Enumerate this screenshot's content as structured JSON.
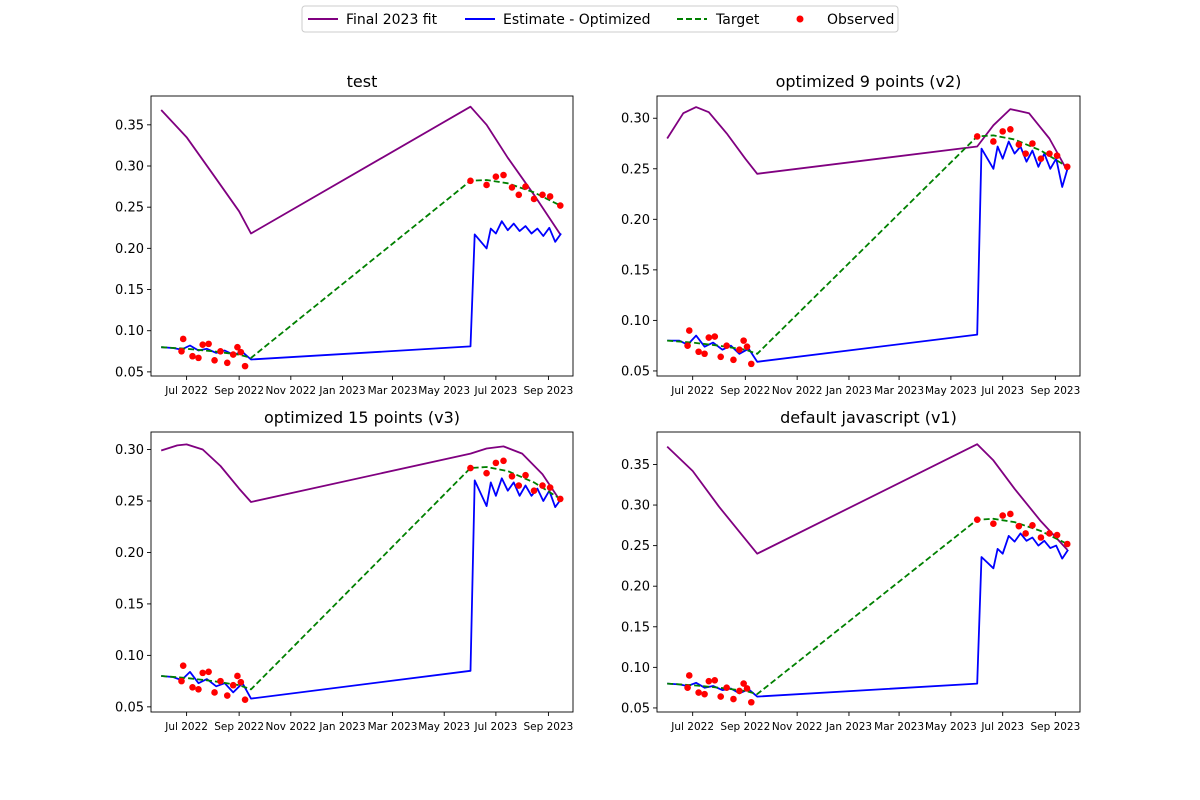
{
  "legend": [
    {
      "label": "Final 2023 fit",
      "color": "#800080",
      "style": "solid"
    },
    {
      "label": "Estimate - Optimized",
      "color": "#0000ff",
      "style": "solid"
    },
    {
      "label": "Target",
      "color": "#008000",
      "style": "dashed"
    },
    {
      "label": "Observed",
      "color": "#ff0000",
      "style": "marker"
    }
  ],
  "chart_data": [
    {
      "type": "line",
      "title": "test",
      "xlabel": "",
      "ylabel": "",
      "xlim": [
        "2022-05-20",
        "2023-09-30"
      ],
      "ylim": [
        0.045,
        0.385
      ],
      "yticks": [
        0.05,
        0.1,
        0.15,
        0.2,
        0.25,
        0.3,
        0.35
      ],
      "grid": false,
      "series": [
        {
          "name": "Final 2023 fit",
          "x": [
            "2022-06-01",
            "2022-07-01",
            "2022-08-01",
            "2022-09-01",
            "2022-09-15",
            "2023-06-01",
            "2023-06-20",
            "2023-07-15",
            "2023-08-15",
            "2023-09-15"
          ],
          "y": [
            0.368,
            0.335,
            0.29,
            0.245,
            0.218,
            0.372,
            0.35,
            0.31,
            0.265,
            0.217
          ]
        },
        {
          "name": "Estimate - Optimized",
          "x": [
            "2022-06-01",
            "2022-06-15",
            "2022-06-25",
            "2022-07-05",
            "2022-07-15",
            "2022-07-25",
            "2022-08-05",
            "2022-08-15",
            "2022-08-25",
            "2022-09-05",
            "2022-09-15",
            "2023-06-01",
            "2023-06-06",
            "2023-06-20",
            "2023-06-25",
            "2023-07-01",
            "2023-07-08",
            "2023-07-15",
            "2023-07-22",
            "2023-07-29",
            "2023-08-05",
            "2023-08-12",
            "2023-08-19",
            "2023-08-26",
            "2023-09-02",
            "2023-09-09",
            "2023-09-16"
          ],
          "y": [
            0.08,
            0.079,
            0.077,
            0.082,
            0.076,
            0.078,
            0.073,
            0.076,
            0.071,
            0.074,
            0.065,
            0.081,
            0.217,
            0.2,
            0.224,
            0.218,
            0.233,
            0.222,
            0.23,
            0.221,
            0.227,
            0.218,
            0.224,
            0.215,
            0.225,
            0.208,
            0.218
          ]
        },
        {
          "name": "Target",
          "x": [
            "2022-06-01",
            "2022-07-01",
            "2022-08-01",
            "2022-09-01",
            "2022-09-15",
            "2023-06-01",
            "2023-06-20",
            "2023-07-15",
            "2023-08-15",
            "2023-09-15"
          ],
          "y": [
            0.08,
            0.078,
            0.075,
            0.071,
            0.067,
            0.282,
            0.283,
            0.279,
            0.268,
            0.252
          ]
        },
        {
          "name": "Observed",
          "type": "scatter",
          "x": [
            "2022-06-25",
            "2022-06-27",
            "2022-07-08",
            "2022-07-15",
            "2022-07-20",
            "2022-07-27",
            "2022-08-03",
            "2022-08-10",
            "2022-08-18",
            "2022-08-25",
            "2022-08-30",
            "2022-09-03",
            "2022-09-08",
            "2023-06-01",
            "2023-06-20",
            "2023-07-01",
            "2023-07-10",
            "2023-07-20",
            "2023-07-28",
            "2023-08-05",
            "2023-08-15",
            "2023-08-25",
            "2023-09-03",
            "2023-09-15"
          ],
          "y": [
            0.075,
            0.09,
            0.069,
            0.067,
            0.083,
            0.084,
            0.064,
            0.075,
            0.061,
            0.071,
            0.08,
            0.074,
            0.057,
            0.282,
            0.277,
            0.287,
            0.289,
            0.274,
            0.265,
            0.275,
            0.26,
            0.265,
            0.263,
            0.252
          ]
        }
      ]
    },
    {
      "type": "line",
      "title": "optimized 9 points (v2)",
      "xlabel": "",
      "ylabel": "",
      "xlim": [
        "2022-05-20",
        "2023-09-30"
      ],
      "ylim": [
        0.045,
        0.322
      ],
      "yticks": [
        0.05,
        0.1,
        0.15,
        0.2,
        0.25,
        0.3
      ],
      "grid": false,
      "series": [
        {
          "name": "Final 2023 fit",
          "x": [
            "2022-06-01",
            "2022-06-20",
            "2022-07-05",
            "2022-07-20",
            "2022-08-10",
            "2022-09-01",
            "2022-09-15",
            "2023-06-01",
            "2023-06-20",
            "2023-07-10",
            "2023-08-01",
            "2023-08-25",
            "2023-09-15"
          ],
          "y": [
            0.28,
            0.305,
            0.311,
            0.306,
            0.285,
            0.26,
            0.245,
            0.272,
            0.293,
            0.309,
            0.305,
            0.28,
            0.248
          ]
        },
        {
          "name": "Estimate - Optimized",
          "x": [
            "2022-06-01",
            "2022-06-15",
            "2022-06-25",
            "2022-07-05",
            "2022-07-15",
            "2022-07-25",
            "2022-08-05",
            "2022-08-15",
            "2022-08-25",
            "2022-09-05",
            "2022-09-15",
            "2023-06-01",
            "2023-06-06",
            "2023-06-20",
            "2023-06-25",
            "2023-07-01",
            "2023-07-08",
            "2023-07-15",
            "2023-07-22",
            "2023-07-29",
            "2023-08-05",
            "2023-08-12",
            "2023-08-19",
            "2023-08-26",
            "2023-09-02",
            "2023-09-09",
            "2023-09-16"
          ],
          "y": [
            0.08,
            0.08,
            0.076,
            0.085,
            0.074,
            0.078,
            0.071,
            0.075,
            0.067,
            0.072,
            0.059,
            0.086,
            0.27,
            0.25,
            0.272,
            0.26,
            0.277,
            0.265,
            0.272,
            0.257,
            0.268,
            0.252,
            0.265,
            0.25,
            0.26,
            0.232,
            0.252
          ]
        },
        {
          "name": "Target",
          "x": [
            "2022-06-01",
            "2022-07-01",
            "2022-08-01",
            "2022-09-01",
            "2022-09-15",
            "2023-06-01",
            "2023-06-20",
            "2023-07-15",
            "2023-08-15",
            "2023-09-15"
          ],
          "y": [
            0.08,
            0.078,
            0.075,
            0.071,
            0.067,
            0.282,
            0.283,
            0.279,
            0.268,
            0.252
          ]
        },
        {
          "name": "Observed",
          "type": "scatter",
          "x": [
            "2022-06-25",
            "2022-06-27",
            "2022-07-08",
            "2022-07-15",
            "2022-07-20",
            "2022-07-27",
            "2022-08-03",
            "2022-08-10",
            "2022-08-18",
            "2022-08-25",
            "2022-08-30",
            "2022-09-03",
            "2022-09-08",
            "2023-06-01",
            "2023-06-20",
            "2023-07-01",
            "2023-07-10",
            "2023-07-20",
            "2023-07-28",
            "2023-08-05",
            "2023-08-15",
            "2023-08-25",
            "2023-09-03",
            "2023-09-15"
          ],
          "y": [
            0.075,
            0.09,
            0.069,
            0.067,
            0.083,
            0.084,
            0.064,
            0.075,
            0.061,
            0.071,
            0.08,
            0.074,
            0.057,
            0.282,
            0.277,
            0.287,
            0.289,
            0.274,
            0.265,
            0.275,
            0.26,
            0.265,
            0.263,
            0.252
          ]
        }
      ]
    },
    {
      "type": "line",
      "title": "optimized 15 points (v3)",
      "xlabel": "",
      "ylabel": "",
      "xlim": [
        "2022-05-20",
        "2023-09-30"
      ],
      "ylim": [
        0.045,
        0.317
      ],
      "yticks": [
        0.05,
        0.1,
        0.15,
        0.2,
        0.25,
        0.3
      ],
      "grid": false,
      "series": [
        {
          "name": "Final 2023 fit",
          "x": [
            "2022-06-01",
            "2022-06-20",
            "2022-07-01",
            "2022-07-20",
            "2022-08-10",
            "2022-09-01",
            "2022-09-15",
            "2023-06-01",
            "2023-06-20",
            "2023-07-10",
            "2023-08-01",
            "2023-08-25",
            "2023-09-15"
          ],
          "y": [
            0.299,
            0.304,
            0.305,
            0.3,
            0.284,
            0.262,
            0.249,
            0.296,
            0.301,
            0.303,
            0.296,
            0.276,
            0.25
          ]
        },
        {
          "name": "Estimate - Optimized",
          "x": [
            "2022-06-01",
            "2022-06-15",
            "2022-06-25",
            "2022-07-05",
            "2022-07-15",
            "2022-07-25",
            "2022-08-05",
            "2022-08-15",
            "2022-08-25",
            "2022-09-05",
            "2022-09-15",
            "2023-06-01",
            "2023-06-06",
            "2023-06-20",
            "2023-06-25",
            "2023-07-01",
            "2023-07-08",
            "2023-07-15",
            "2023-07-22",
            "2023-07-29",
            "2023-08-05",
            "2023-08-12",
            "2023-08-19",
            "2023-08-26",
            "2023-09-02",
            "2023-09-09",
            "2023-09-16"
          ],
          "y": [
            0.08,
            0.079,
            0.076,
            0.084,
            0.073,
            0.077,
            0.07,
            0.073,
            0.064,
            0.073,
            0.058,
            0.085,
            0.27,
            0.245,
            0.268,
            0.255,
            0.272,
            0.26,
            0.268,
            0.255,
            0.265,
            0.255,
            0.262,
            0.25,
            0.26,
            0.244,
            0.252
          ]
        },
        {
          "name": "Target",
          "x": [
            "2022-06-01",
            "2022-07-01",
            "2022-08-01",
            "2022-09-01",
            "2022-09-15",
            "2023-06-01",
            "2023-06-20",
            "2023-07-15",
            "2023-08-15",
            "2023-09-15"
          ],
          "y": [
            0.08,
            0.078,
            0.075,
            0.071,
            0.067,
            0.282,
            0.283,
            0.279,
            0.268,
            0.252
          ]
        },
        {
          "name": "Observed",
          "type": "scatter",
          "x": [
            "2022-06-25",
            "2022-06-27",
            "2022-07-08",
            "2022-07-15",
            "2022-07-20",
            "2022-07-27",
            "2022-08-03",
            "2022-08-10",
            "2022-08-18",
            "2022-08-25",
            "2022-08-30",
            "2022-09-03",
            "2022-09-08",
            "2023-06-01",
            "2023-06-20",
            "2023-07-01",
            "2023-07-10",
            "2023-07-20",
            "2023-07-28",
            "2023-08-05",
            "2023-08-15",
            "2023-08-25",
            "2023-09-03",
            "2023-09-15"
          ],
          "y": [
            0.075,
            0.09,
            0.069,
            0.067,
            0.083,
            0.084,
            0.064,
            0.075,
            0.061,
            0.071,
            0.08,
            0.074,
            0.057,
            0.282,
            0.277,
            0.287,
            0.289,
            0.274,
            0.265,
            0.275,
            0.26,
            0.265,
            0.263,
            0.252
          ]
        }
      ]
    },
    {
      "type": "line",
      "title": "default javascript (v1)",
      "xlabel": "",
      "ylabel": "",
      "xlim": [
        "2022-05-20",
        "2023-09-30"
      ],
      "ylim": [
        0.045,
        0.39
      ],
      "yticks": [
        0.05,
        0.1,
        0.15,
        0.2,
        0.25,
        0.3,
        0.35
      ],
      "grid": false,
      "series": [
        {
          "name": "Final 2023 fit",
          "x": [
            "2022-06-01",
            "2022-07-01",
            "2022-08-01",
            "2022-09-01",
            "2022-09-15",
            "2023-06-01",
            "2023-06-20",
            "2023-07-15",
            "2023-08-15",
            "2023-09-15"
          ],
          "y": [
            0.372,
            0.342,
            0.298,
            0.258,
            0.24,
            0.375,
            0.355,
            0.32,
            0.28,
            0.245
          ]
        },
        {
          "name": "Estimate - Optimized",
          "x": [
            "2022-06-01",
            "2022-06-15",
            "2022-06-25",
            "2022-07-05",
            "2022-07-15",
            "2022-07-25",
            "2022-08-05",
            "2022-08-15",
            "2022-08-25",
            "2022-09-05",
            "2022-09-15",
            "2023-06-01",
            "2023-06-06",
            "2023-06-20",
            "2023-06-25",
            "2023-07-01",
            "2023-07-08",
            "2023-07-15",
            "2023-07-22",
            "2023-07-29",
            "2023-08-05",
            "2023-08-12",
            "2023-08-19",
            "2023-08-26",
            "2023-09-02",
            "2023-09-09",
            "2023-09-16"
          ],
          "y": [
            0.08,
            0.079,
            0.077,
            0.081,
            0.075,
            0.077,
            0.072,
            0.074,
            0.068,
            0.073,
            0.064,
            0.08,
            0.236,
            0.222,
            0.246,
            0.24,
            0.262,
            0.255,
            0.265,
            0.256,
            0.26,
            0.25,
            0.256,
            0.247,
            0.25,
            0.234,
            0.245
          ]
        },
        {
          "name": "Target",
          "x": [
            "2022-06-01",
            "2022-07-01",
            "2022-08-01",
            "2022-09-01",
            "2022-09-15",
            "2023-06-01",
            "2023-06-20",
            "2023-07-15",
            "2023-08-15",
            "2023-09-15"
          ],
          "y": [
            0.08,
            0.078,
            0.075,
            0.071,
            0.067,
            0.282,
            0.283,
            0.279,
            0.268,
            0.252
          ]
        },
        {
          "name": "Observed",
          "type": "scatter",
          "x": [
            "2022-06-25",
            "2022-06-27",
            "2022-07-08",
            "2022-07-15",
            "2022-07-20",
            "2022-07-27",
            "2022-08-03",
            "2022-08-10",
            "2022-08-18",
            "2022-08-25",
            "2022-08-30",
            "2022-09-03",
            "2022-09-08",
            "2023-06-01",
            "2023-06-20",
            "2023-07-01",
            "2023-07-10",
            "2023-07-20",
            "2023-07-28",
            "2023-08-05",
            "2023-08-15",
            "2023-08-25",
            "2023-09-03",
            "2023-09-15"
          ],
          "y": [
            0.075,
            0.09,
            0.069,
            0.067,
            0.083,
            0.084,
            0.064,
            0.075,
            0.061,
            0.071,
            0.08,
            0.074,
            0.057,
            0.282,
            0.277,
            0.287,
            0.289,
            0.274,
            0.265,
            0.275,
            0.26,
            0.265,
            0.263,
            0.252
          ]
        }
      ]
    }
  ],
  "xticks": [
    {
      "date": "2022-07-01",
      "label": "Jul 2022"
    },
    {
      "date": "2022-09-01",
      "label": "Sep 2022"
    },
    {
      "date": "2022-11-01",
      "label": "Nov 2022"
    },
    {
      "date": "2023-01-01",
      "label": "Jan 2023"
    },
    {
      "date": "2023-03-01",
      "label": "Mar 2023"
    },
    {
      "date": "2023-05-01",
      "label": "May 2023"
    },
    {
      "date": "2023-07-01",
      "label": "Jul 2023"
    },
    {
      "date": "2023-09-01",
      "label": "Sep 2023"
    }
  ]
}
